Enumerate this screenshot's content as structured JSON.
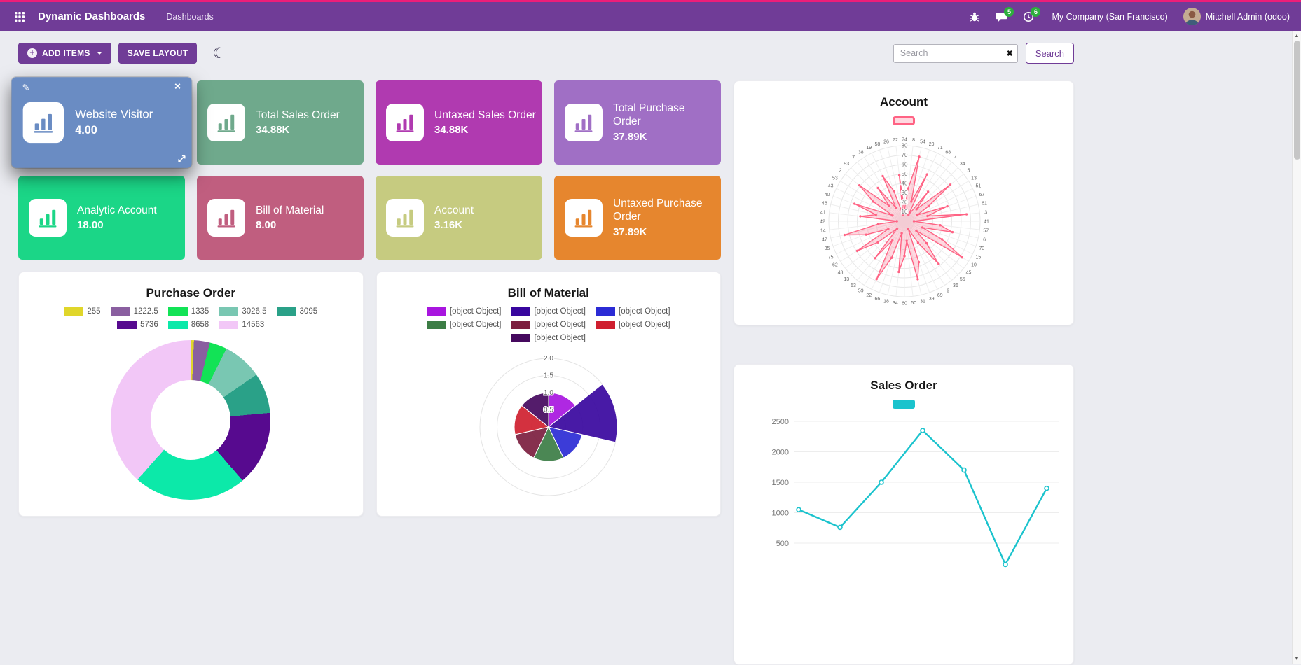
{
  "brand": {
    "primary": "#703c97",
    "accent": "#ed1e79"
  },
  "icons": {
    "plus": "+",
    "moon": "☾",
    "edit": "✎",
    "close": "✕",
    "clear": "✖",
    "scroll_up": "▲",
    "scroll_down": "▼"
  },
  "navbar": {
    "app_title": "Dynamic Dashboards",
    "menu_dashboards": "Dashboards",
    "chat_badge": "5",
    "activity_badge": "6",
    "company": "My Company (San Francisco)",
    "user": "Mitchell Admin (odoo)"
  },
  "toolbar": {
    "add_items_label": "ADD ITEMS",
    "save_layout_label": "SAVE LAYOUT",
    "search_placeholder": "Search",
    "search_button_label": "Search"
  },
  "tiles": [
    {
      "title": "Website Visitor",
      "value": "4.00",
      "color": "#6a8cc3"
    },
    {
      "title": "Total Sales Order",
      "value": "34.88K",
      "color": "#6fa98c"
    },
    {
      "title": "Untaxed Sales Order",
      "value": "34.88K",
      "color": "#b03ab0"
    },
    {
      "title": "Total Purchase Order",
      "value": "37.89K",
      "color": "#a06fc5"
    },
    {
      "title": "Analytic Account",
      "value": "18.00",
      "color": "#1bd687"
    },
    {
      "title": "Bill of Material",
      "value": "8.00",
      "color": "#c05e7f"
    },
    {
      "title": "Account",
      "value": "3.16K",
      "color": "#c6cb80"
    },
    {
      "title": "Untaxed Purchase Order",
      "value": "37.89K",
      "color": "#e6862e"
    }
  ],
  "chart_data": [
    {
      "type": "doughnut",
      "title": "Purchase Order",
      "labels": [
        "255",
        "1222.5",
        "1335",
        "3026.5",
        "3095",
        "5736",
        "8658",
        "14563"
      ],
      "values": [
        255,
        1222.5,
        1335,
        3026.5,
        3095,
        5736,
        8658,
        14563
      ],
      "colors": [
        "#e0d62a",
        "#8a5fa0",
        "#12e356",
        "#79c7b2",
        "#2aa188",
        "#570a8f",
        "#0ce9a9",
        "#f2c7f7"
      ],
      "legend_position": "top"
    },
    {
      "type": "polarArea",
      "title": "Bill of Material",
      "labels": [
        "[object Object]",
        "[object Object]",
        "[object Object]",
        "[object Object]",
        "[object Object]",
        "[object Object]",
        "[object Object]"
      ],
      "values": [
        1,
        2,
        1,
        1,
        1,
        1,
        1
      ],
      "colors": [
        "#a816df",
        "#38069e",
        "#2b2bd5",
        "#3c7d45",
        "#7c1e3f",
        "#cf1f2f",
        "#45095e"
      ],
      "ticks": [
        0.5,
        1,
        1.5,
        2
      ],
      "rmax": 2,
      "legend_position": "top"
    },
    {
      "type": "radar",
      "title": "Account",
      "color": "#ff6384",
      "fill": "rgba(255,99,132,0.25)",
      "rmax": 80,
      "ticks": [
        10,
        20,
        30,
        40,
        50,
        60,
        70,
        80
      ],
      "point_labels": [
        74,
        8,
        54,
        29,
        71,
        68,
        4,
        34,
        5,
        13,
        51,
        67,
        61,
        3,
        41,
        57,
        6,
        73,
        15,
        10,
        45,
        55,
        36,
        9,
        69,
        39,
        31,
        50,
        60,
        34,
        18,
        66,
        22,
        59,
        53,
        13,
        48,
        62,
        75,
        35,
        47,
        14,
        42,
        41,
        46,
        40,
        43,
        53,
        2,
        93,
        7,
        38,
        19,
        58,
        26,
        72
      ],
      "values": [
        12,
        35,
        70,
        22,
        55,
        8,
        40,
        18,
        62,
        30,
        15,
        48,
        25,
        66,
        10,
        38,
        52,
        20,
        44,
        72,
        16,
        33,
        58,
        27,
        9,
        46,
        63,
        21,
        37,
        54,
        13,
        41,
        68,
        24,
        50,
        11,
        36,
        59,
        19,
        43,
        65,
        28,
        8,
        47,
        31,
        56,
        14,
        39,
        61,
        23,
        45,
        17,
        53,
        34,
        7,
        49
      ],
      "legend_position": "top"
    },
    {
      "type": "line",
      "title": "Sales Order",
      "color": "#1bc3cd",
      "values": [
        1050,
        760,
        1500,
        2350,
        1700,
        150,
        1400
      ],
      "yticks": [
        500,
        1000,
        1500,
        2000,
        2500
      ],
      "ylim": [
        0,
        2600
      ],
      "legend_position": "top"
    }
  ]
}
